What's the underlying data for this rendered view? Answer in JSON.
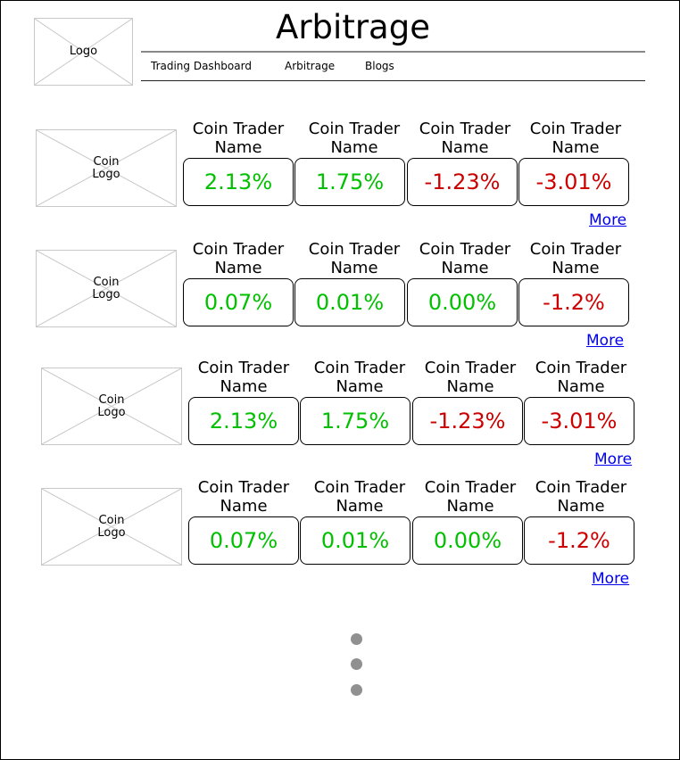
{
  "header": {
    "logo_text": "Logo",
    "title": "Arbitrage",
    "nav": [
      "Trading Dashboard",
      "Arbitrage",
      "Blogs"
    ]
  },
  "colors": {
    "positive": "#00c000",
    "negative": "#cc0000",
    "link": "#0000ee",
    "placeholder_border": "#c8c8c8"
  },
  "rows": [
    {
      "coin_logo": "Coin\nLogo",
      "traders": [
        {
          "name": "Coin Trader Name",
          "value": "2.13%",
          "trend": "positive"
        },
        {
          "name": "Coin Trader Name",
          "value": "1.75%",
          "trend": "positive"
        },
        {
          "name": "Coin Trader Name",
          "value": "-1.23%",
          "trend": "negative"
        },
        {
          "name": "Coin Trader Name",
          "value": "-3.01%",
          "trend": "negative"
        }
      ],
      "more": "More"
    },
    {
      "coin_logo": "Coin\nLogo",
      "traders": [
        {
          "name": "Coin Trader Name",
          "value": "0.07%",
          "trend": "positive"
        },
        {
          "name": "Coin Trader Name",
          "value": "0.01%",
          "trend": "positive"
        },
        {
          "name": "Coin Trader Name",
          "value": "0.00%",
          "trend": "positive"
        },
        {
          "name": "Coin Trader Name",
          "value": "-1.2%",
          "trend": "negative"
        }
      ],
      "more": "More"
    },
    {
      "coin_logo": "Coin\nLogo",
      "traders": [
        {
          "name": "Coin Trader Name",
          "value": "2.13%",
          "trend": "positive"
        },
        {
          "name": "Coin Trader Name",
          "value": "1.75%",
          "trend": "positive"
        },
        {
          "name": "Coin Trader Name",
          "value": "-1.23%",
          "trend": "negative"
        },
        {
          "name": "Coin Trader Name",
          "value": "-3.01%",
          "trend": "negative"
        }
      ],
      "more": "More"
    },
    {
      "coin_logo": "Coin\nLogo",
      "traders": [
        {
          "name": "Coin Trader Name",
          "value": "0.07%",
          "trend": "positive"
        },
        {
          "name": "Coin Trader Name",
          "value": "0.01%",
          "trend": "positive"
        },
        {
          "name": "Coin Trader Name",
          "value": "0.00%",
          "trend": "positive"
        },
        {
          "name": "Coin Trader Name",
          "value": "-1.2%",
          "trend": "negative"
        }
      ],
      "more": "More"
    }
  ],
  "pagination_icon": "vertical-ellipsis-icon"
}
